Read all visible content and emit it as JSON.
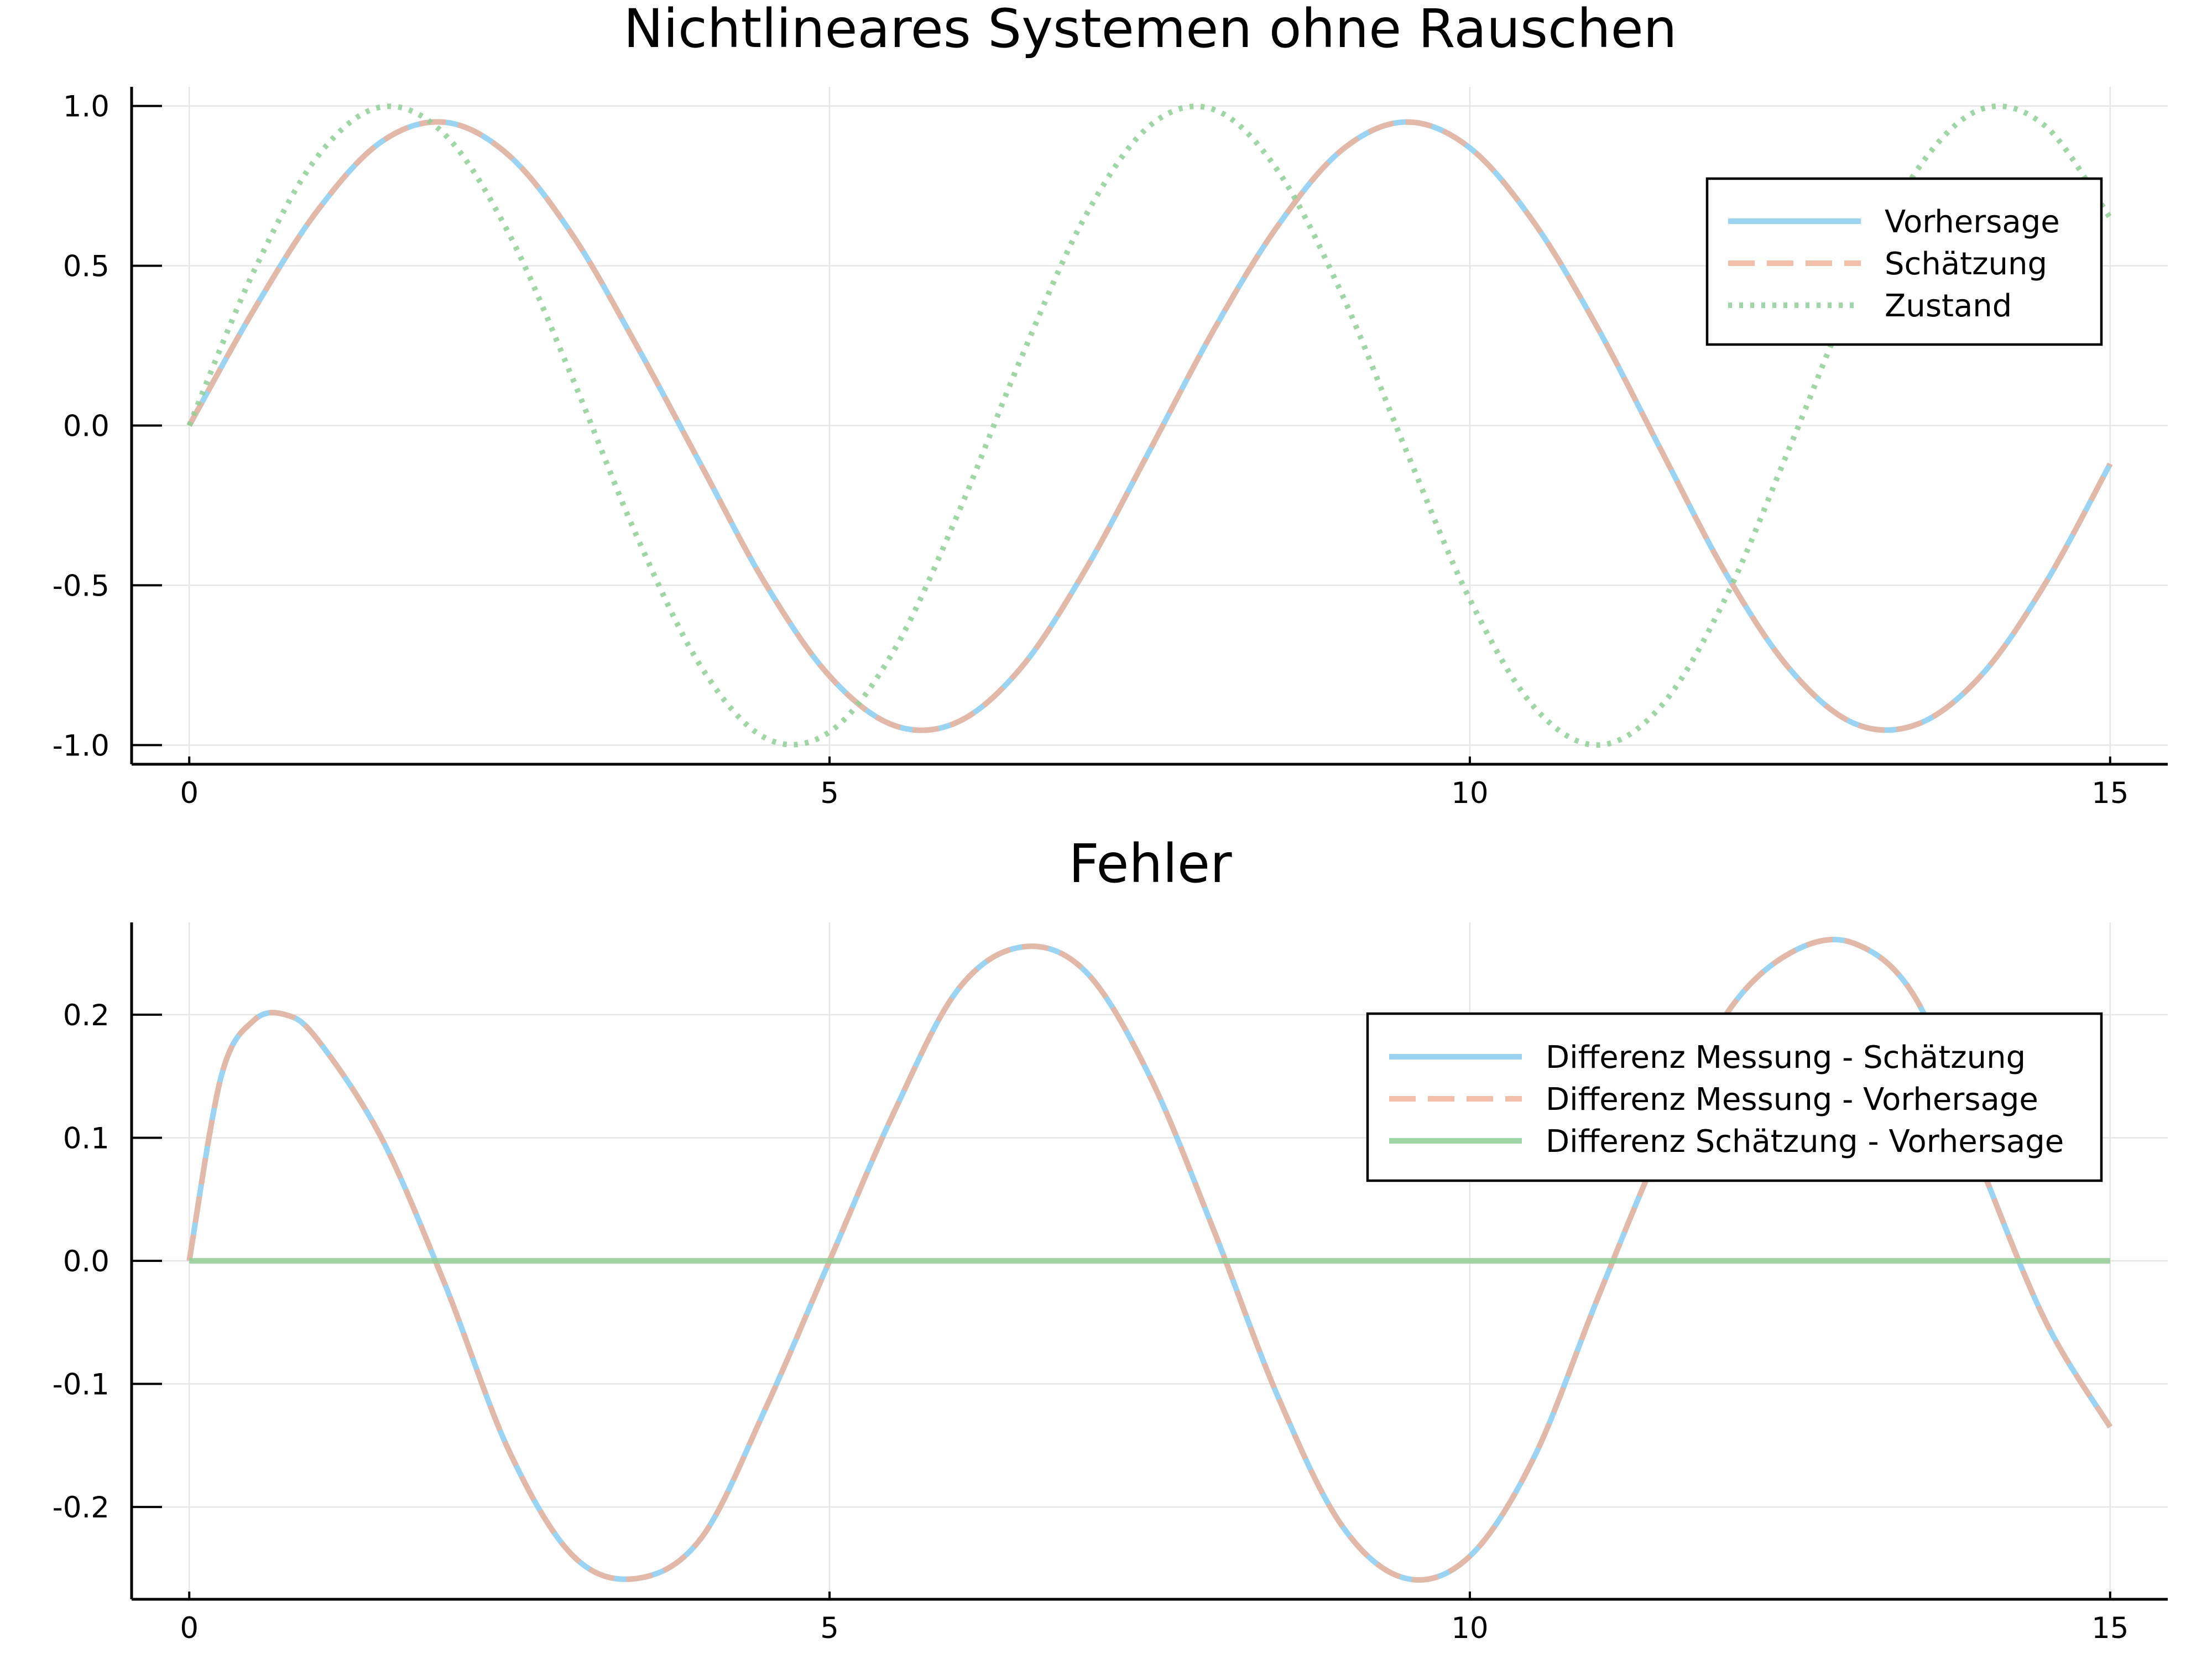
{
  "chart_data": [
    {
      "type": "line",
      "title": "Nichtlineares Systemen ohne Rauschen",
      "xlabel": "",
      "ylabel": "",
      "xlim": [
        -0.45,
        15.45
      ],
      "ylim": [
        -1.06,
        1.06
      ],
      "xticks": [
        0,
        5,
        10,
        15
      ],
      "xtick_labels": [
        "0",
        "5",
        "10",
        "15"
      ],
      "yticks": [
        -1.0,
        -0.5,
        0.0,
        0.5,
        1.0
      ],
      "ytick_labels": [
        "-1.0",
        "-0.5",
        "0.0",
        "0.5",
        "1.0"
      ],
      "grid": true,
      "legend_position": "top-right",
      "legend_labels": [
        "Vorhersage",
        "Schätzung",
        "Zustand"
      ],
      "x": [
        0,
        0.5,
        1,
        1.5,
        2,
        2.5,
        3,
        3.5,
        4,
        4.5,
        5,
        5.5,
        6,
        6.5,
        7,
        7.5,
        8,
        8.5,
        9,
        9.5,
        10,
        10.5,
        11,
        11.5,
        12,
        12.5,
        13,
        13.5,
        14,
        14.5,
        15
      ],
      "series": [
        {
          "name": "Vorhersage",
          "color": "#8acdf1",
          "style": "solid",
          "values": [
            0.0,
            0.359,
            0.672,
            0.888,
            0.949,
            0.844,
            0.592,
            0.246,
            -0.126,
            -0.496,
            -0.784,
            -0.938,
            -0.928,
            -0.756,
            -0.45,
            -0.078,
            0.299,
            0.625,
            0.862,
            0.95,
            0.869,
            0.636,
            0.304,
            -0.082,
            -0.463,
            -0.763,
            -0.932,
            -0.934,
            -0.779,
            -0.49,
            -0.12
          ]
        },
        {
          "name": "Schätzung",
          "color": "#eeb39a",
          "style": "dashed",
          "values": [
            0.0,
            0.359,
            0.672,
            0.888,
            0.949,
            0.844,
            0.592,
            0.246,
            -0.126,
            -0.496,
            -0.784,
            -0.938,
            -0.928,
            -0.756,
            -0.45,
            -0.078,
            0.299,
            0.625,
            0.862,
            0.95,
            0.869,
            0.636,
            0.304,
            -0.082,
            -0.463,
            -0.763,
            -0.932,
            -0.934,
            -0.779,
            -0.49,
            -0.12
          ]
        },
        {
          "name": "Zustand",
          "color": "#8fcf95",
          "style": "dotted",
          "values": [
            0.0,
            0.479,
            0.841,
            0.997,
            0.909,
            0.598,
            0.141,
            -0.351,
            -0.757,
            -0.978,
            -0.959,
            -0.706,
            -0.279,
            0.215,
            0.657,
            0.938,
            0.989,
            0.798,
            0.412,
            -0.075,
            -0.544,
            -0.88,
            -1.0,
            -0.875,
            -0.537,
            -0.066,
            0.42,
            0.804,
            0.991,
            0.935,
            0.65
          ]
        }
      ]
    },
    {
      "type": "line",
      "title": "Fehler",
      "xlabel": "",
      "ylabel": "",
      "xlim": [
        -0.45,
        15.45
      ],
      "ylim": [
        -0.275,
        0.275
      ],
      "xticks": [
        0,
        5,
        10,
        15
      ],
      "xtick_labels": [
        "0",
        "5",
        "10",
        "15"
      ],
      "yticks": [
        -0.2,
        -0.1,
        0.0,
        0.1,
        0.2
      ],
      "ytick_labels": [
        "-0.2",
        "-0.1",
        "0.0",
        "0.1",
        "0.2"
      ],
      "grid": true,
      "legend_position": "top-right",
      "legend_labels": [
        "Differenz Messung - Schätzung",
        "Differenz Messung - Vorhersage",
        "Differenz Schätzung - Vorhersage"
      ],
      "x": [
        0,
        0.25,
        0.5,
        0.75,
        1,
        1.5,
        2,
        2.5,
        3,
        3.5,
        4,
        4.5,
        5,
        5.5,
        6,
        6.5,
        7,
        7.5,
        8,
        8.5,
        9,
        9.5,
        10,
        10.5,
        11,
        11.5,
        12,
        12.5,
        13,
        13.5,
        14,
        14.5,
        15
      ],
      "series": [
        {
          "name": "Differenz Messung - Schätzung",
          "color": "#8acdf1",
          "style": "solid",
          "values": [
            0.0,
            0.15,
            0.195,
            0.2,
            0.18,
            0.1,
            -0.02,
            -0.155,
            -0.24,
            -0.258,
            -0.225,
            -0.12,
            0.0,
            0.12,
            0.22,
            0.255,
            0.235,
            0.15,
            0.025,
            -0.11,
            -0.215,
            -0.258,
            -0.24,
            -0.16,
            -0.03,
            0.095,
            0.2,
            0.25,
            0.258,
            0.21,
            0.075,
            -0.05,
            -0.135
          ]
        },
        {
          "name": "Differenz Messung - Vorhersage",
          "color": "#eeb39a",
          "style": "dashed",
          "values": [
            0.0,
            0.15,
            0.195,
            0.2,
            0.18,
            0.1,
            -0.02,
            -0.155,
            -0.24,
            -0.258,
            -0.225,
            -0.12,
            0.0,
            0.12,
            0.22,
            0.255,
            0.235,
            0.15,
            0.025,
            -0.11,
            -0.215,
            -0.258,
            -0.24,
            -0.16,
            -0.03,
            0.095,
            0.2,
            0.25,
            0.258,
            0.21,
            0.075,
            -0.05,
            -0.135
          ]
        },
        {
          "name": "Differenz Schätzung - Vorhersage",
          "color": "#8fcf95",
          "style": "solid",
          "values": [
            0.0,
            0.0,
            0.0,
            0.0,
            0.0,
            0.0,
            0.0,
            0.0,
            0.0,
            0.0,
            0.0,
            0.0,
            0.0,
            0.0,
            0.0,
            0.0,
            0.0,
            0.0,
            0.0,
            0.0,
            0.0,
            0.0,
            0.0,
            0.0,
            0.0,
            0.0,
            0.0,
            0.0,
            0.0,
            0.0,
            0.0,
            0.0,
            0.0
          ]
        }
      ]
    }
  ]
}
